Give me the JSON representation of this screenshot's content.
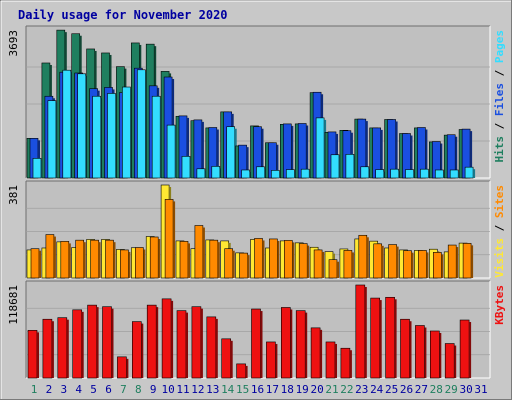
{
  "colors": {
    "frame_bg": "#c8c8c8",
    "plot_bg": "#c0c0c0",
    "title": "#0000a0",
    "hits": "#1f7f5f",
    "files": "#1a4fe0",
    "pages": "#33ddff",
    "visits": "#ffe833",
    "sites": "#ff8a00",
    "kbytes": "#ee1111",
    "day_normal": "#0000a0",
    "day_weekend": "#1f7f5f"
  },
  "chart_data": [
    {
      "id": "top",
      "type": "bar",
      "title": "Daily usage for November 2020",
      "ylabel_max": "3693",
      "ylim": [
        0,
        3693
      ],
      "grid": true,
      "legend": [
        {
          "key": "pages",
          "text": "Pages"
        },
        {
          "key": "files",
          "text": "Files"
        },
        {
          "key": "hits",
          "text": "Hits"
        }
      ],
      "categories": [
        "1",
        "2",
        "3",
        "4",
        "5",
        "6",
        "7",
        "8",
        "9",
        "10",
        "11",
        "12",
        "13",
        "14",
        "15",
        "16",
        "17",
        "18",
        "19",
        "20",
        "21",
        "22",
        "23",
        "24",
        "25",
        "26",
        "27",
        "28",
        "29",
        "30",
        "31"
      ],
      "weekend_days": [
        1,
        7,
        8,
        14,
        15,
        21,
        22,
        28,
        29
      ],
      "series": [
        {
          "key": "hits",
          "values": [
            990,
            2870,
            3690,
            3600,
            3220,
            3120,
            2780,
            3370,
            3340,
            2660,
            1540,
            1430,
            1250,
            1650,
            800,
            1300,
            880,
            1340,
            1350,
            2130,
            1140,
            1190,
            1470,
            1250,
            1460,
            1110,
            1250,
            900,
            1070,
            1210,
            0
          ]
        },
        {
          "key": "files",
          "values": [
            990,
            2040,
            2640,
            2620,
            2230,
            2260,
            2130,
            2740,
            2300,
            2520,
            1550,
            1450,
            1260,
            1650,
            820,
            1280,
            880,
            1350,
            1360,
            2140,
            1150,
            1180,
            1470,
            1250,
            1460,
            1110,
            1260,
            910,
            1080,
            1220,
            0
          ]
        },
        {
          "key": "pages",
          "values": [
            490,
            1930,
            2690,
            2600,
            2040,
            2110,
            2270,
            2700,
            2040,
            1320,
            540,
            230,
            290,
            1280,
            200,
            280,
            190,
            210,
            220,
            1500,
            580,
            590,
            280,
            210,
            220,
            210,
            220,
            200,
            200,
            270,
            0
          ]
        }
      ]
    },
    {
      "id": "middle",
      "type": "bar",
      "ylabel_max": "381",
      "ylim": [
        0,
        381
      ],
      "grid": true,
      "legend": [
        {
          "key": "sites",
          "text": "Sites"
        },
        {
          "key": "visits",
          "text": "Visits"
        }
      ],
      "categories": [
        "1",
        "2",
        "3",
        "4",
        "5",
        "6",
        "7",
        "8",
        "9",
        "10",
        "11",
        "12",
        "13",
        "14",
        "15",
        "16",
        "17",
        "18",
        "19",
        "20",
        "21",
        "22",
        "23",
        "24",
        "25",
        "26",
        "27",
        "28",
        "29",
        "30",
        "31"
      ],
      "series": [
        {
          "key": "visits",
          "values": [
            115,
            123,
            148,
            125,
            158,
            158,
            117,
            124,
            170,
            381,
            152,
            120,
            156,
            152,
            103,
            158,
            123,
            152,
            144,
            126,
            108,
            119,
            160,
            151,
            123,
            115,
            113,
            118,
            107,
            143,
            0
          ]
        },
        {
          "key": "sites",
          "values": [
            120,
            178,
            150,
            155,
            155,
            155,
            115,
            125,
            168,
            322,
            150,
            215,
            155,
            120,
            102,
            162,
            160,
            154,
            141,
            115,
            75,
            113,
            175,
            140,
            137,
            112,
            113,
            105,
            135,
            142,
            0
          ]
        }
      ]
    },
    {
      "id": "bottom",
      "type": "bar",
      "ylabel_max": "118681",
      "ylim": [
        0,
        118681
      ],
      "grid": true,
      "legend": [
        {
          "key": "kbytes",
          "text": "KBytes"
        }
      ],
      "categories": [
        "1",
        "2",
        "3",
        "4",
        "5",
        "6",
        "7",
        "8",
        "9",
        "10",
        "11",
        "12",
        "13",
        "14",
        "15",
        "16",
        "17",
        "18",
        "19",
        "20",
        "21",
        "22",
        "23",
        "24",
        "25",
        "26",
        "27",
        "28",
        "29",
        "30",
        "31"
      ],
      "series": [
        {
          "key": "kbytes",
          "values": [
            60800,
            75000,
            77000,
            87000,
            93000,
            91000,
            27000,
            72000,
            93000,
            101000,
            86000,
            91000,
            78000,
            50000,
            18000,
            88000,
            46000,
            90000,
            86000,
            64000,
            46000,
            38000,
            118681,
            102000,
            103000,
            75000,
            67000,
            60000,
            44000,
            74000,
            0
          ]
        }
      ]
    }
  ]
}
